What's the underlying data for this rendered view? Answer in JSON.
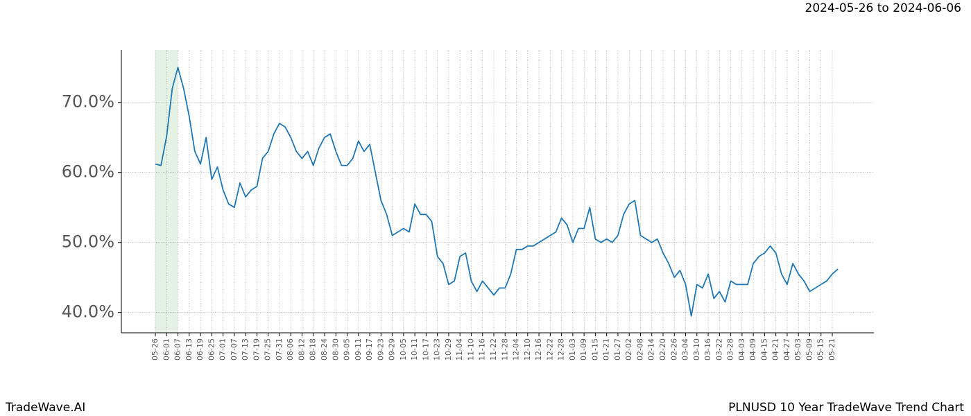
{
  "chart_data": {
    "type": "line",
    "title": "PLNUSD 10 Year TradeWave Trend Chart",
    "subtitle": "2024-05-26 to 2024-06-06",
    "source": "TradeWave.AI",
    "categories": [
      "05-26",
      null,
      "06-01",
      null,
      "06-07",
      null,
      "06-13",
      null,
      "06-19",
      null,
      "06-25",
      null,
      "07-01",
      null,
      "07-07",
      null,
      "07-13",
      null,
      "07-19",
      null,
      "07-25",
      null,
      "07-31",
      null,
      "08-06",
      null,
      "08-12",
      null,
      "08-18",
      null,
      "08-24",
      null,
      "08-30",
      null,
      "09-05",
      null,
      "09-11",
      null,
      "09-17",
      null,
      "09-23",
      null,
      "09-29",
      null,
      "10-05",
      null,
      "10-11",
      null,
      "10-17",
      null,
      "10-23",
      null,
      "10-29",
      null,
      "11-04",
      null,
      "11-10",
      null,
      "11-16",
      null,
      "11-22",
      null,
      "11-28",
      null,
      "12-04",
      null,
      "12-10",
      null,
      "12-16",
      null,
      "12-22",
      null,
      "12-28",
      null,
      "01-03",
      null,
      "01-09",
      null,
      "01-15",
      null,
      "01-21",
      null,
      "01-27",
      null,
      "02-02",
      null,
      "02-08",
      null,
      "02-14",
      null,
      "02-20",
      null,
      "02-26",
      null,
      "03-04",
      null,
      "03-10",
      null,
      "03-16",
      null,
      "03-22",
      null,
      "03-28",
      null,
      "04-03",
      null,
      "04-09",
      null,
      "04-15",
      null,
      "04-21",
      null,
      "04-27",
      null,
      "05-03",
      null,
      "05-09",
      null,
      "05-15",
      null,
      "05-21",
      null
    ],
    "series": [
      {
        "name": "PLNUSD",
        "color": "#1f77b4",
        "values": [
          61.2,
          61.0,
          65.2,
          72.0,
          75.0,
          72.0,
          68.0,
          63.0,
          61.2,
          65.0,
          59.0,
          60.8,
          57.5,
          55.5,
          55.0,
          58.5,
          56.5,
          57.5,
          58.0,
          62.0,
          63.0,
          65.5,
          67.0,
          66.5,
          65.0,
          63.0,
          62.0,
          63.0,
          61.0,
          63.5,
          65.0,
          65.5,
          63.0,
          61.0,
          61.0,
          62.0,
          64.5,
          63.0,
          64.0,
          60.0,
          56.0,
          54.0,
          51.0,
          51.5,
          52.0,
          51.5,
          55.5,
          54.0,
          54.0,
          53.0,
          48.0,
          47.0,
          44.0,
          44.5,
          48.0,
          48.5,
          44.5,
          43.0,
          44.5,
          43.5,
          42.5,
          43.5,
          43.5,
          45.5,
          49.0,
          49.0,
          49.5,
          49.5,
          50.0,
          50.5,
          51.0,
          51.5,
          53.5,
          52.5,
          50.0,
          52.0,
          52.0,
          55.0,
          50.5,
          50.0,
          50.5,
          50.0,
          51.0,
          54.0,
          55.5,
          56.0,
          51.0,
          50.5,
          50.0,
          50.5,
          48.5,
          47.0,
          45.0,
          46.0,
          44.0,
          39.5,
          44.0,
          43.5,
          45.5,
          42.0,
          43.0,
          41.5,
          44.5,
          44.0,
          44.0,
          44.0,
          47.0,
          48.0,
          48.5,
          49.5,
          48.5,
          45.5,
          44.0,
          47.0,
          45.5,
          44.5,
          43.0,
          43.5,
          44.0,
          44.5,
          45.5,
          46.2
        ]
      }
    ],
    "ylim": [
      37.1,
      77.5
    ],
    "yticks": [
      {
        "value": 40,
        "label": "40.0%"
      },
      {
        "value": 50,
        "label": "50.0%"
      },
      {
        "value": 60,
        "label": "60.0%"
      },
      {
        "value": 70,
        "label": "70.0%"
      }
    ],
    "grid": true
  }
}
